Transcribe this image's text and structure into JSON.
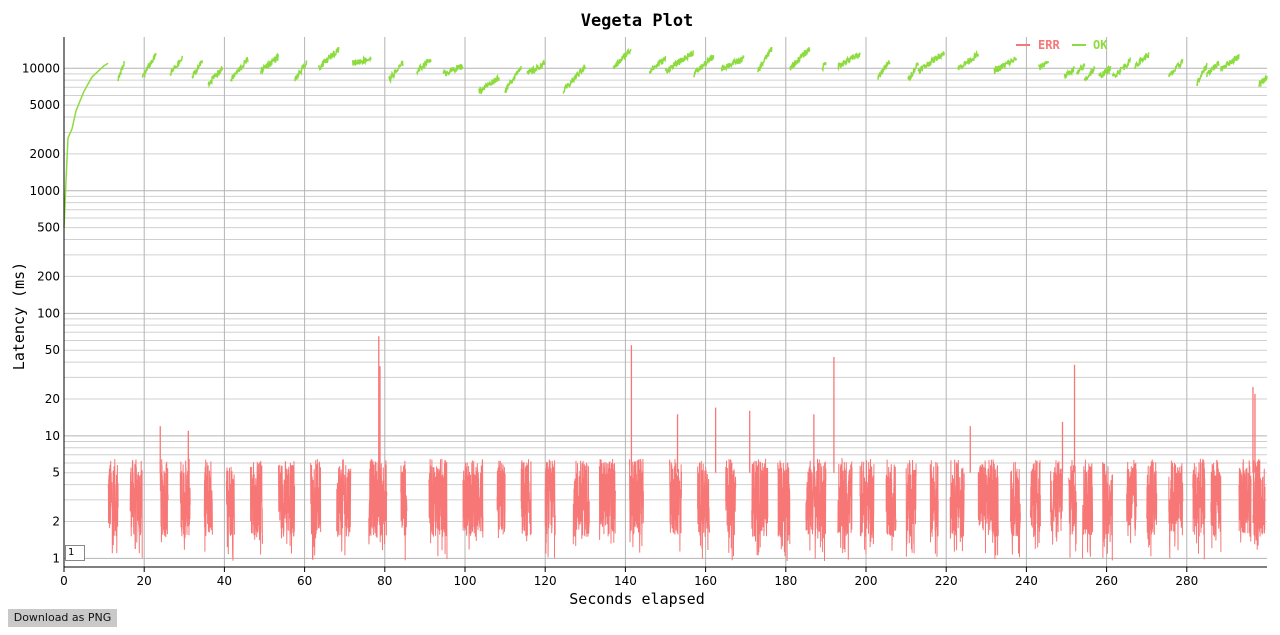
{
  "chart_data": {
    "type": "line",
    "title": "Vegeta Plot",
    "xlabel": "Seconds elapsed",
    "ylabel": "Latency (ms)",
    "xlim": [
      0,
      300
    ],
    "ylim": [
      0.85,
      18000
    ],
    "yscale": "log",
    "grid": true,
    "legend_position": "top-right",
    "x_ticks": [
      "0",
      "20",
      "40",
      "60",
      "80",
      "100",
      "120",
      "140",
      "160",
      "180",
      "200",
      "220",
      "240",
      "260",
      "280"
    ],
    "y_ticks": [
      "1",
      "2",
      "5",
      "10",
      "20",
      "50",
      "100",
      "200",
      "500",
      "1000",
      "2000",
      "5000",
      "10000"
    ],
    "series": [
      {
        "name": "ERR",
        "color": "#f77777",
        "active_windows": [
          [
            11,
            13.5
          ],
          [
            16.5,
            19.5
          ],
          [
            24,
            26
          ],
          [
            29,
            31.5
          ],
          [
            35,
            37
          ],
          [
            40.5,
            42.5
          ],
          [
            46.5,
            49.5
          ],
          [
            53.5,
            57.5
          ],
          [
            61.5,
            64
          ],
          [
            68,
            71.5
          ],
          [
            76,
            80.5
          ],
          [
            84,
            85.5
          ],
          [
            91,
            95.5
          ],
          [
            99.5,
            104.5
          ],
          [
            108,
            110
          ],
          [
            114,
            116.5
          ],
          [
            120,
            122.5
          ],
          [
            127,
            131
          ],
          [
            133.5,
            134.5
          ],
          [
            134.5,
            137.5
          ],
          [
            141,
            144.5
          ],
          [
            151,
            154
          ],
          [
            158,
            161
          ],
          [
            165,
            167.5
          ],
          [
            171.5,
            175.5
          ],
          [
            178,
            181
          ],
          [
            185,
            190
          ],
          [
            193,
            196.5
          ],
          [
            198.5,
            202
          ],
          [
            205,
            207.5
          ],
          [
            210,
            212.5
          ],
          [
            216,
            218
          ],
          [
            221,
            224.5
          ],
          [
            228,
            233
          ],
          [
            236,
            238.5
          ],
          [
            241,
            243.5
          ],
          [
            246,
            249
          ],
          [
            250.5,
            252.5
          ],
          [
            254,
            256.5
          ],
          [
            259,
            261.5
          ],
          [
            265,
            267.5
          ],
          [
            270,
            272.5
          ],
          [
            275.5,
            279
          ],
          [
            281.5,
            284.5
          ],
          [
            286,
            288.5
          ],
          [
            293,
            296
          ],
          [
            296.5,
            299.5
          ]
        ],
        "typical_range_ms": [
          1.5,
          6.5
        ],
        "peaks": [
          {
            "x": 78.5,
            "y": 65
          },
          {
            "x": 78.8,
            "y": 37
          },
          {
            "x": 141.5,
            "y": 55
          },
          {
            "x": 192,
            "y": 44
          },
          {
            "x": 252,
            "y": 38
          },
          {
            "x": 296.5,
            "y": 25
          },
          {
            "x": 297,
            "y": 22
          },
          {
            "x": 162.5,
            "y": 17
          },
          {
            "x": 171,
            "y": 16
          },
          {
            "x": 187,
            "y": 15
          },
          {
            "x": 153,
            "y": 15
          },
          {
            "x": 226,
            "y": 12
          },
          {
            "x": 249,
            "y": 13
          },
          {
            "x": 24,
            "y": 12
          },
          {
            "x": 31,
            "y": 11
          }
        ]
      },
      {
        "name": "OK",
        "color": "#8ddc3f",
        "ramp": {
          "x": [
            0,
            0.5,
            1,
            2,
            3,
            5,
            7,
            10,
            11
          ],
          "y": [
            500,
            1200,
            2700,
            3200,
            4500,
            6500,
            8500,
            10500,
            11000
          ]
        },
        "segments": [
          [
            13.5,
            15,
            8000,
            11000
          ],
          [
            19.5,
            23,
            8500,
            13000
          ],
          [
            26.5,
            29.5,
            9000,
            12000
          ],
          [
            32,
            34.5,
            8500,
            11500
          ],
          [
            36,
            39.5,
            7500,
            10000
          ],
          [
            41.5,
            46,
            8000,
            12000
          ],
          [
            49,
            53.5,
            9500,
            12500
          ],
          [
            57.5,
            60.5,
            8000,
            11000
          ],
          [
            63.5,
            68.5,
            10000,
            14500
          ],
          [
            72,
            76.5,
            11000,
            12000
          ],
          [
            81,
            84.5,
            8000,
            11000
          ],
          [
            88,
            91.5,
            9500,
            12000
          ],
          [
            94.5,
            99.5,
            9000,
            10500
          ],
          [
            103.5,
            108.5,
            6500,
            8500
          ],
          [
            110,
            114,
            6500,
            10500
          ],
          [
            115.5,
            120,
            9000,
            11000
          ],
          [
            124.5,
            130,
            6500,
            10500
          ],
          [
            137,
            141.5,
            10000,
            14500
          ],
          [
            146,
            150,
            9500,
            12000
          ],
          [
            150,
            157,
            9500,
            13500
          ],
          [
            157,
            162,
            9000,
            12500
          ],
          [
            164,
            169.5,
            10000,
            12000
          ],
          [
            173,
            176.5,
            9500,
            14500
          ],
          [
            181,
            186,
            10000,
            14500
          ],
          [
            189,
            190,
            10000,
            11000
          ],
          [
            193,
            198.5,
            10500,
            13000
          ],
          [
            203,
            206,
            8500,
            11500
          ],
          [
            210.5,
            213,
            8000,
            11000
          ],
          [
            213,
            219.5,
            9500,
            13500
          ],
          [
            223,
            228,
            10000,
            13000
          ],
          [
            232,
            237.5,
            9500,
            12000
          ],
          [
            243,
            245.5,
            10000,
            11500
          ],
          [
            249.5,
            252,
            8500,
            10000
          ],
          [
            252.5,
            254.5,
            9000,
            10500
          ],
          [
            254.5,
            257,
            8000,
            10000
          ],
          [
            258,
            261,
            8500,
            10000
          ],
          [
            261.5,
            266,
            8500,
            11500
          ],
          [
            267,
            270.5,
            10500,
            13000
          ],
          [
            275.5,
            279,
            8500,
            11500
          ],
          [
            282.5,
            285,
            7500,
            10500
          ],
          [
            285,
            288,
            9000,
            11000
          ],
          [
            288.5,
            293,
            10000,
            12500
          ],
          [
            298,
            300,
            7500,
            8500
          ]
        ]
      }
    ]
  },
  "controls": {
    "download_label": "Download as PNG",
    "range_value": "1"
  }
}
